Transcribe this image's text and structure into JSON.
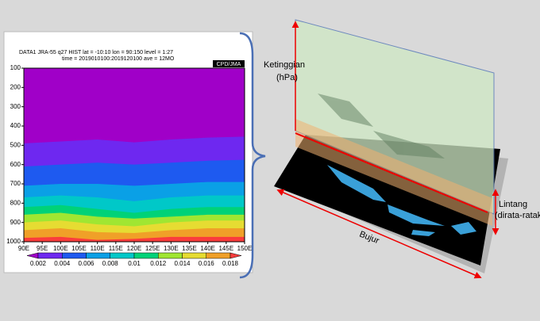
{
  "chart_data": {
    "type": "contour",
    "header": [
      "DATA1   JRA-55   q27   HIST   lat = -10:10   lon = 90:150   level = 1:27",
      "time = 2019010100:2019120100   ave = 12MO"
    ],
    "credit": "CPD/JMA",
    "xlim": [
      90,
      150
    ],
    "xticks": [
      {
        "value": 90,
        "label": "90E"
      },
      {
        "value": 95,
        "label": "95E"
      },
      {
        "value": 100,
        "label": "100E"
      },
      {
        "value": 105,
        "label": "105E"
      },
      {
        "value": 110,
        "label": "110E"
      },
      {
        "value": 115,
        "label": "115E"
      },
      {
        "value": 120,
        "label": "120E"
      },
      {
        "value": 125,
        "label": "125E"
      },
      {
        "value": 130,
        "label": "130E"
      },
      {
        "value": 135,
        "label": "135E"
      },
      {
        "value": 140,
        "label": "140E"
      },
      {
        "value": 145,
        "label": "145E"
      },
      {
        "value": 150,
        "label": "150E"
      }
    ],
    "ylim": [
      100,
      1000
    ],
    "y_reversed": true,
    "yticks": [
      100,
      200,
      300,
      400,
      500,
      600,
      700,
      800,
      900,
      1000
    ],
    "levels": [
      0.002,
      0.004,
      0.006,
      0.008,
      0.01,
      0.012,
      0.014,
      0.016,
      0.018
    ],
    "colors": [
      "#a000c8",
      "#6e28f0",
      "#1e5af0",
      "#0aa0e6",
      "#00c8c8",
      "#00d278",
      "#a0e632",
      "#e6dc32",
      "#f0a028",
      "#fa3c3c"
    ],
    "contour_x": [
      90,
      100,
      110,
      120,
      130,
      140,
      150
    ],
    "contours": [
      [
        490,
        480,
        470,
        485,
        470,
        460,
        455
      ],
      [
        610,
        600,
        590,
        600,
        590,
        580,
        575
      ],
      [
        710,
        700,
        700,
        710,
        700,
        690,
        690
      ],
      [
        770,
        760,
        770,
        790,
        770,
        760,
        760
      ],
      [
        820,
        810,
        830,
        850,
        830,
        820,
        820
      ],
      [
        860,
        850,
        870,
        880,
        870,
        860,
        860
      ],
      [
        900,
        890,
        910,
        920,
        900,
        890,
        890
      ],
      [
        940,
        930,
        950,
        955,
        940,
        930,
        930
      ],
      [
        980,
        975,
        990,
        985,
        975,
        975,
        975
      ]
    ]
  },
  "diagram": {
    "height_label": "Ketinggian",
    "height_unit": "(hPa)",
    "lat_label": "Lintang",
    "lat_note": "(dirata-ratakan)",
    "lon_label": "Bujur"
  }
}
